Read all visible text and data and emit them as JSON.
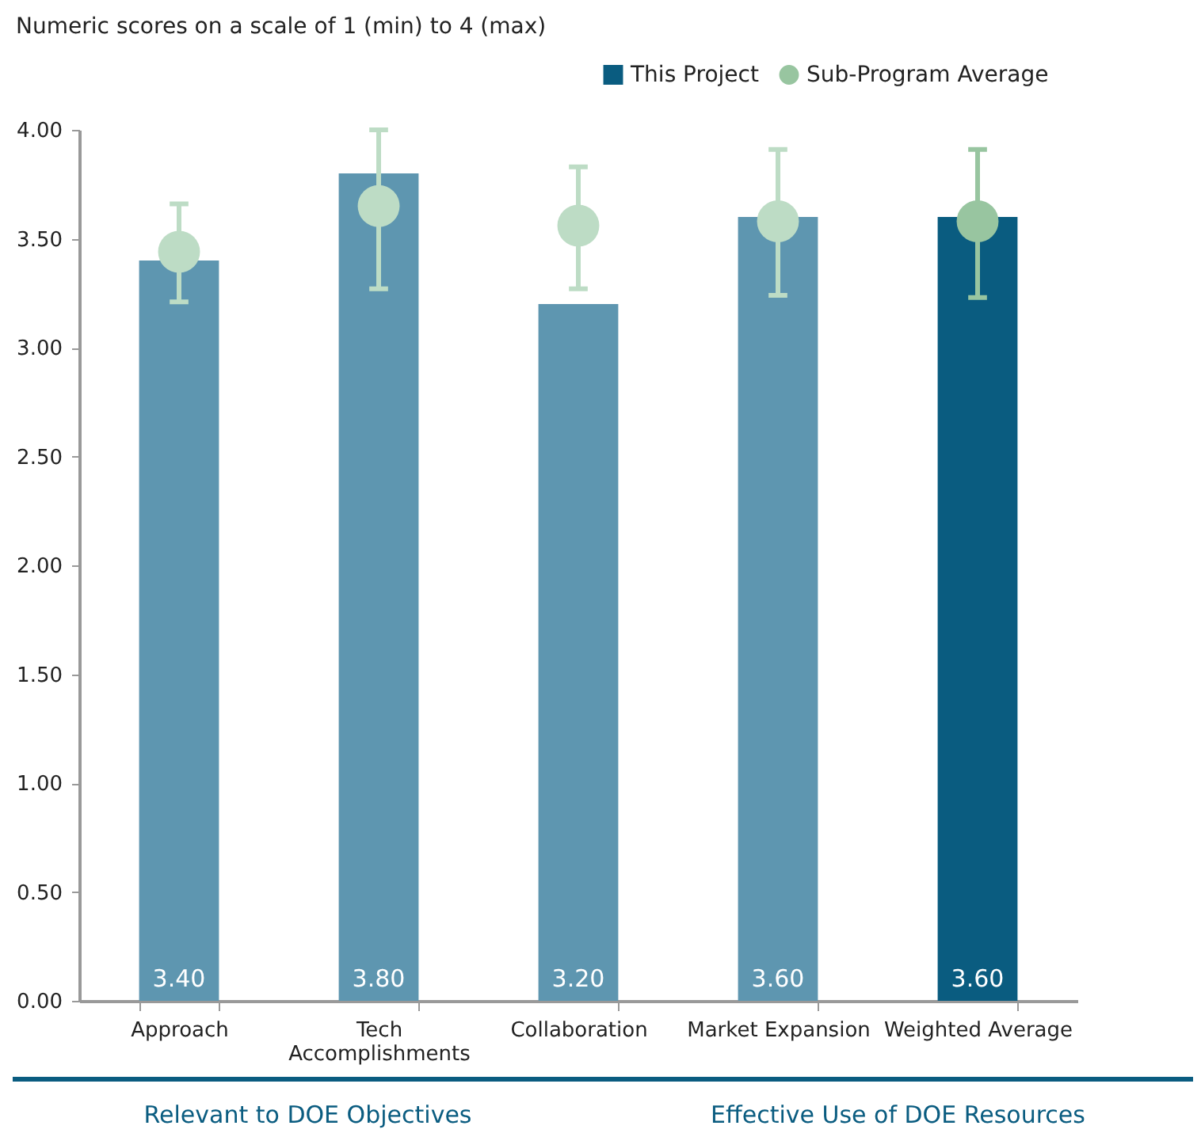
{
  "chart_data": {
    "type": "bar",
    "title": "Numeric scores on a scale of 1 (min) to 4 (max)",
    "categories": [
      "Approach",
      "Tech Accomplishments",
      "Collaboration",
      "Market Expansion",
      "Weighted Average"
    ],
    "series": [
      {
        "name": "This Project",
        "color": "#0a5c80",
        "colors": [
          "#5e96b0",
          "#5e96b0",
          "#5e96b0",
          "#5e96b0",
          "#0a5c80"
        ],
        "values": [
          3.4,
          3.8,
          3.2,
          3.6,
          3.6
        ],
        "value_labels": [
          "3.40",
          "3.80",
          "3.20",
          "3.60",
          "3.60"
        ]
      },
      {
        "name": "Sub-Program Average",
        "type": "scatter",
        "color": "#98c5a0",
        "colors": [
          "#bddcc5",
          "#bddcc5",
          "#bddcc5",
          "#bddcc5",
          "#98c5a0"
        ],
        "x": [
          "Approach",
          "Tech Accomplishments",
          "Collaboration",
          "Market Expansion",
          "Weighted Average"
        ],
        "values": [
          3.44,
          3.65,
          3.56,
          3.58,
          3.58
        ],
        "errors": [
          [
            3.21,
            3.66
          ],
          [
            3.27,
            4.0
          ],
          [
            3.27,
            3.83
          ],
          [
            3.24,
            3.91
          ],
          [
            3.23,
            3.91
          ]
        ],
        "marker": "circle"
      }
    ],
    "ylim": [
      0,
      4
    ],
    "yticks": [
      {
        "value": 0,
        "label": "0.00"
      },
      {
        "value": 0.5,
        "label": "0.50"
      },
      {
        "value": 1,
        "label": "1.00"
      },
      {
        "value": 1.5,
        "label": "1.50"
      },
      {
        "value": 2,
        "label": "2.00"
      },
      {
        "value": 2.5,
        "label": "2.50"
      },
      {
        "value": 3,
        "label": "3.00"
      },
      {
        "value": 3.5,
        "label": "3.50"
      },
      {
        "value": 4,
        "label": "4.00"
      }
    ],
    "grid": false,
    "legend": "top right",
    "annotations": [
      "Relevant to DOE Objectives",
      "Effective Use of DOE Resources"
    ]
  }
}
